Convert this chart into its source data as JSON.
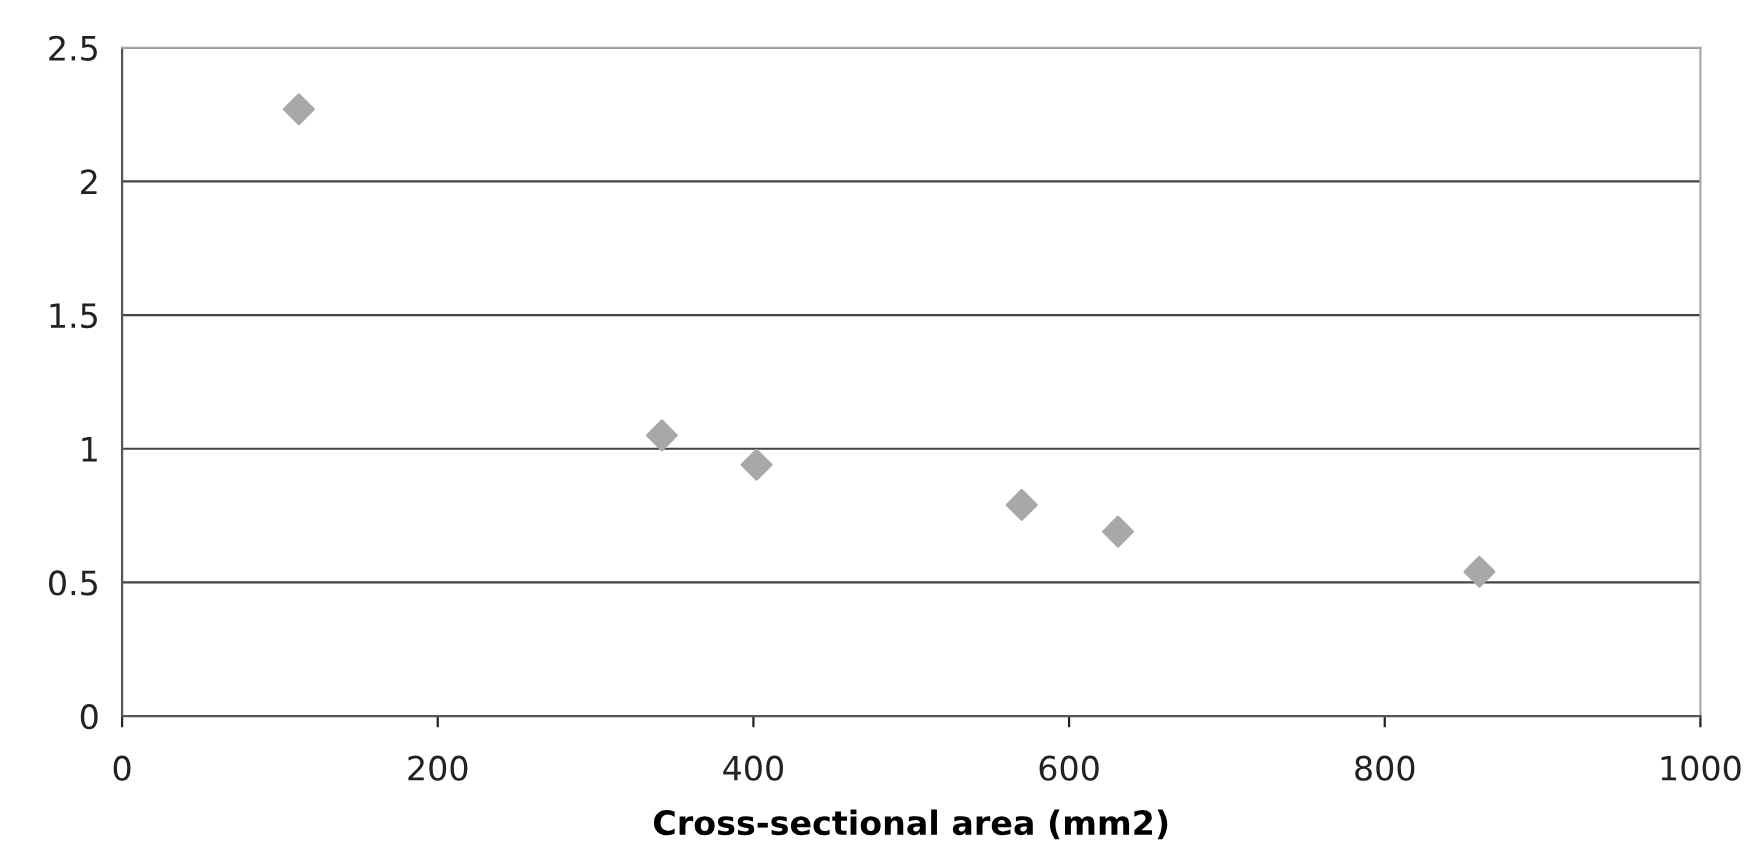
{
  "chart_data": {
    "type": "scatter",
    "xlabel": "Cross-sectional area (mm2)",
    "x": [
      112,
      342,
      402,
      570,
      631,
      860
    ],
    "values": [
      2.27,
      1.05,
      0.94,
      0.79,
      0.69,
      0.54
    ],
    "color": "#a8a8a8",
    "marker": "diamond",
    "xlim": [
      0,
      1000
    ],
    "xticks": [
      0,
      200,
      400,
      600,
      800,
      1000
    ],
    "ylim": [
      0,
      2.5
    ],
    "yticks": [
      0,
      0.5,
      1,
      1.5,
      2,
      2.5
    ],
    "grid": "y"
  }
}
